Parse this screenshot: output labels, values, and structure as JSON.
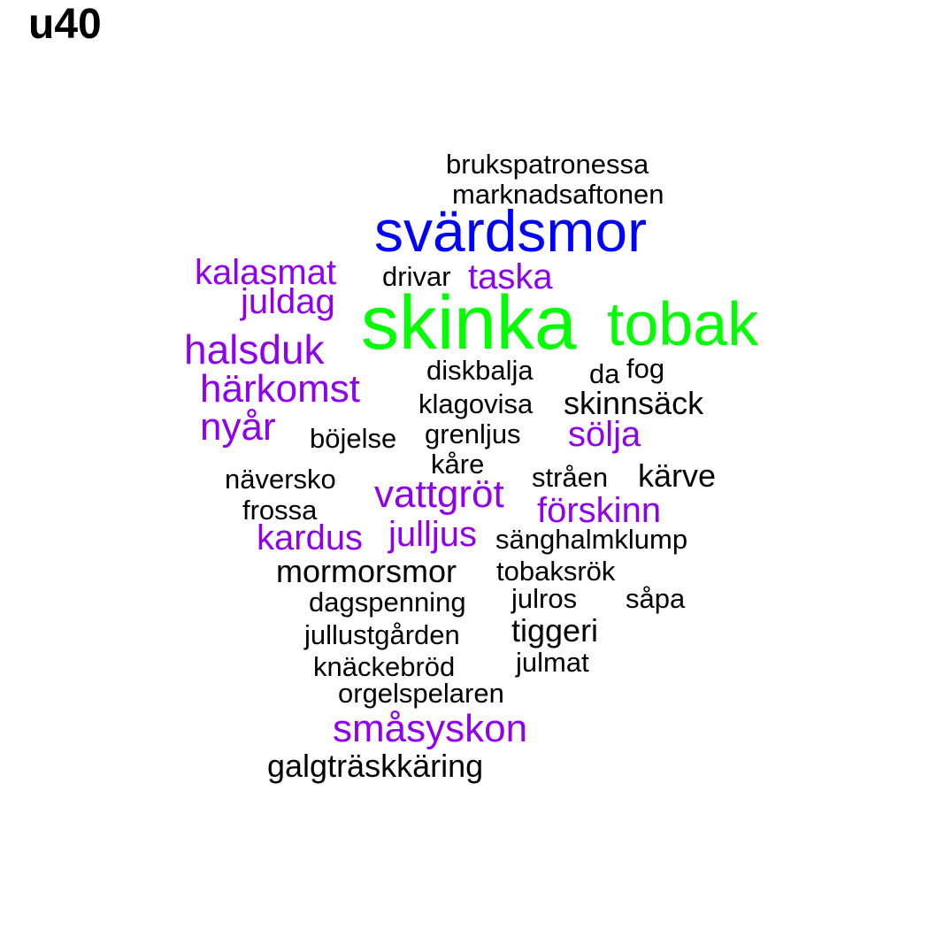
{
  "title": "u40",
  "colors": {
    "black": "#000000",
    "purple": "#8f00f0",
    "blue": "#0000ff",
    "green": "#00ff00"
  },
  "words": [
    {
      "text": "brukspatronessa",
      "color": "#000000"
    },
    {
      "text": "marknadsaftonen",
      "color": "#000000"
    },
    {
      "text": "svärdsmor",
      "color": "#0000ff"
    },
    {
      "text": "kalasmat",
      "color": "#8f00f0"
    },
    {
      "text": "drivar",
      "color": "#000000"
    },
    {
      "text": "taska",
      "color": "#8f00f0"
    },
    {
      "text": "juldag",
      "color": "#8f00f0"
    },
    {
      "text": "skinka",
      "color": "#00ff00"
    },
    {
      "text": "tobak",
      "color": "#00ff00"
    },
    {
      "text": "halsduk",
      "color": "#8f00f0"
    },
    {
      "text": "diskbalja",
      "color": "#000000"
    },
    {
      "text": "da",
      "color": "#000000"
    },
    {
      "text": "fog",
      "color": "#000000"
    },
    {
      "text": "härkomst",
      "color": "#8f00f0"
    },
    {
      "text": "klagovisa",
      "color": "#000000"
    },
    {
      "text": "skinnsäck",
      "color": "#000000"
    },
    {
      "text": "nyår",
      "color": "#8f00f0"
    },
    {
      "text": "böjelse",
      "color": "#000000"
    },
    {
      "text": "grenljus",
      "color": "#000000"
    },
    {
      "text": "sölja",
      "color": "#8f00f0"
    },
    {
      "text": "kåre",
      "color": "#000000"
    },
    {
      "text": "näversko",
      "color": "#000000"
    },
    {
      "text": "stråen",
      "color": "#000000"
    },
    {
      "text": "kärve",
      "color": "#000000"
    },
    {
      "text": "vattgröt",
      "color": "#8f00f0"
    },
    {
      "text": "frossa",
      "color": "#000000"
    },
    {
      "text": "förskinn",
      "color": "#8f00f0"
    },
    {
      "text": "kardus",
      "color": "#8f00f0"
    },
    {
      "text": "julljus",
      "color": "#8f00f0"
    },
    {
      "text": "sänghalmklump",
      "color": "#000000"
    },
    {
      "text": "mormorsmor",
      "color": "#000000"
    },
    {
      "text": "tobaksrök",
      "color": "#000000"
    },
    {
      "text": "dagspenning",
      "color": "#000000"
    },
    {
      "text": "julros",
      "color": "#000000"
    },
    {
      "text": "såpa",
      "color": "#000000"
    },
    {
      "text": "tiggeri",
      "color": "#000000"
    },
    {
      "text": "jullustgården",
      "color": "#000000"
    },
    {
      "text": "knäckebröd",
      "color": "#000000"
    },
    {
      "text": "julmat",
      "color": "#000000"
    },
    {
      "text": "orgelspelaren",
      "color": "#000000"
    },
    {
      "text": "småsyskon",
      "color": "#8f00f0"
    },
    {
      "text": "galgträskkäring",
      "color": "#000000"
    }
  ]
}
